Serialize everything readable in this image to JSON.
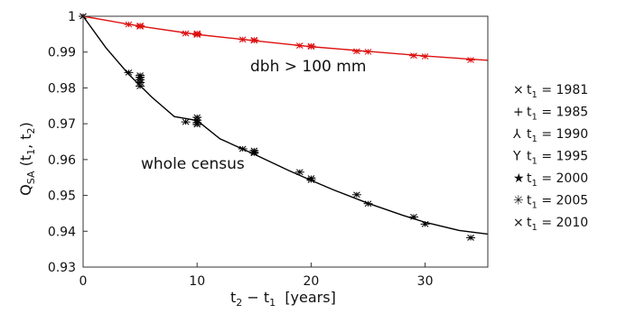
{
  "chart_data": {
    "type": "scatter",
    "xlabel_main": "t",
    "xlabel_sub2": "2",
    "xlabel_mid": " − t",
    "xlabel_sub1": "1",
    "xlabel_units": "  [years]",
    "ylabel_main": "Q",
    "ylabel_sub": "SA",
    "ylabel_args_open": " (t",
    "ylabel_args_sub1": "1",
    "ylabel_args_mid": ", t",
    "ylabel_args_sub2": "2",
    "ylabel_args_close": ")",
    "xlim": [
      0,
      35.5
    ],
    "ylim": [
      0.93,
      1.0
    ],
    "xticks": [
      0,
      10,
      20,
      30
    ],
    "xtick_labels": [
      "0",
      "10",
      "20",
      "30"
    ],
    "yticks": [
      0.93,
      0.94,
      0.95,
      0.96,
      0.97,
      0.98,
      0.99,
      1.0
    ],
    "ytick_labels": [
      "0.93",
      "0.94",
      "0.95",
      "0.96",
      "0.97",
      "0.98",
      "0.99",
      "1"
    ],
    "annotations": [
      {
        "text": "dbh >  100 mm"
      },
      {
        "text": "whole census"
      }
    ],
    "legend": [
      {
        "marker": "×",
        "label_prefix": "t",
        "sub": "1",
        "label_suffix": " = 1981"
      },
      {
        "marker": "+",
        "label_prefix": "t",
        "sub": "1",
        "label_suffix": " = 1985"
      },
      {
        "marker": "⅄",
        "label_prefix": "t",
        "sub": "1",
        "label_suffix": " = 1990"
      },
      {
        "marker": "Y",
        "label_prefix": "t",
        "sub": "1",
        "label_suffix": " = 1995"
      },
      {
        "marker": "★",
        "label_prefix": "t",
        "sub": "1",
        "label_suffix": " = 2000"
      },
      {
        "marker": "✳",
        "label_prefix": "t",
        "sub": "1",
        "label_suffix": " = 2005"
      },
      {
        "marker": "×",
        "label_prefix": "t",
        "sub": "1",
        "label_suffix": " = 2010"
      }
    ],
    "series": [
      {
        "color": "#dd1111",
        "curve": [
          [
            0,
            1.0
          ],
          [
            5,
            0.9972
          ],
          [
            10,
            0.9949
          ],
          [
            15,
            0.9932
          ],
          [
            20,
            0.9915
          ],
          [
            25,
            0.9902
          ],
          [
            30,
            0.9889
          ],
          [
            35.5,
            0.9877
          ]
        ],
        "points": [
          [
            0,
            1.0
          ],
          [
            4,
            0.9977
          ],
          [
            5,
            0.9974
          ],
          [
            5,
            0.9971
          ],
          [
            5,
            0.9973
          ],
          [
            9,
            0.9952
          ],
          [
            10,
            0.9952
          ],
          [
            10,
            0.995
          ],
          [
            10,
            0.9948
          ],
          [
            14,
            0.9935
          ],
          [
            15,
            0.9934
          ],
          [
            15,
            0.9932
          ],
          [
            19,
            0.9918
          ],
          [
            20,
            0.9917
          ],
          [
            20,
            0.9915
          ],
          [
            24,
            0.9902
          ],
          [
            25,
            0.9901
          ],
          [
            29,
            0.989
          ],
          [
            30,
            0.9888
          ],
          [
            34,
            0.9878
          ]
        ]
      },
      {
        "color": "#000000",
        "curve": [
          [
            0,
            1.0
          ],
          [
            2,
            0.9912
          ],
          [
            4,
            0.9838
          ],
          [
            6,
            0.9775
          ],
          [
            8,
            0.972
          ],
          [
            10,
            0.9709
          ],
          [
            12,
            0.9658
          ],
          [
            15,
            0.9615
          ],
          [
            18,
            0.957
          ],
          [
            20,
            0.9542
          ],
          [
            22,
            0.9515
          ],
          [
            25,
            0.9478
          ],
          [
            28,
            0.9445
          ],
          [
            30,
            0.9425
          ],
          [
            33,
            0.9402
          ],
          [
            35.5,
            0.9392
          ]
        ],
        "points": [
          [
            0,
            1.0
          ],
          [
            4,
            0.9843
          ],
          [
            5,
            0.9835
          ],
          [
            5,
            0.9823
          ],
          [
            5,
            0.9815
          ],
          [
            5,
            0.9805
          ],
          [
            5,
            0.983
          ],
          [
            9,
            0.9705
          ],
          [
            10,
            0.9718
          ],
          [
            10,
            0.971
          ],
          [
            10,
            0.9703
          ],
          [
            10,
            0.9698
          ],
          [
            14,
            0.963
          ],
          [
            15,
            0.9625
          ],
          [
            15,
            0.962
          ],
          [
            15,
            0.9618
          ],
          [
            19,
            0.9565
          ],
          [
            20,
            0.9548
          ],
          [
            20,
            0.9543
          ],
          [
            24,
            0.9502
          ],
          [
            25,
            0.9477
          ],
          [
            29,
            0.944
          ],
          [
            30,
            0.942
          ],
          [
            34,
            0.9382
          ]
        ]
      }
    ]
  }
}
